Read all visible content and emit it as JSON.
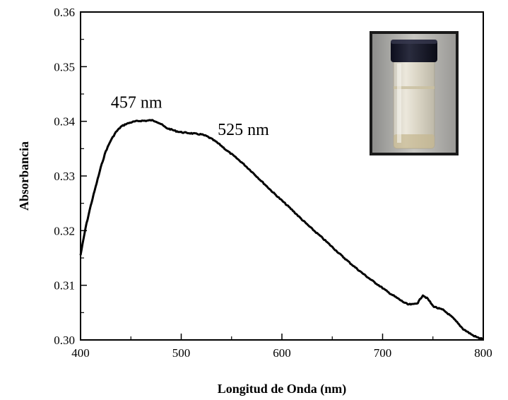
{
  "chart_data": {
    "type": "line",
    "xlabel": "Longitud de Onda (nm)",
    "ylabel": "Absorbancia",
    "xlim": [
      400,
      800
    ],
    "ylim": [
      0.3,
      0.36
    ],
    "x_ticks": [
      "400",
      "500",
      "600",
      "700",
      "800"
    ],
    "y_ticks": [
      "0.30",
      "0.31",
      "0.32",
      "0.33",
      "0.34",
      "0.35",
      "0.36"
    ],
    "grid": false,
    "legend": "none",
    "annotations": [
      {
        "text": "457 nm",
        "x": 457,
        "y": 0.3425
      },
      {
        "text": "525 nm",
        "x": 525,
        "y": 0.3375
      }
    ],
    "inset": "photo-of-vial",
    "series": [
      {
        "color": "#000000",
        "x": [
          400,
          405,
          410,
          415,
          420,
          425,
          430,
          435,
          440,
          445,
          450,
          455,
          460,
          465,
          470,
          475,
          480,
          485,
          490,
          495,
          500,
          505,
          510,
          515,
          520,
          525,
          530,
          535,
          540,
          545,
          550,
          560,
          570,
          580,
          590,
          600,
          610,
          620,
          630,
          640,
          650,
          660,
          670,
          680,
          690,
          700,
          705,
          710,
          715,
          720,
          725,
          730,
          735,
          740,
          745,
          750,
          755,
          760,
          765,
          770,
          775,
          780,
          785,
          790,
          795,
          800
        ],
        "y": [
          0.3155,
          0.3205,
          0.3245,
          0.328,
          0.3315,
          0.3345,
          0.3365,
          0.338,
          0.339,
          0.3395,
          0.3398,
          0.34,
          0.3401,
          0.3401,
          0.3402,
          0.34,
          0.3395,
          0.3388,
          0.3385,
          0.3382,
          0.338,
          0.3379,
          0.3378,
          0.3377,
          0.3376,
          0.3373,
          0.3368,
          0.3362,
          0.3355,
          0.3347,
          0.334,
          0.3325,
          0.3308,
          0.329,
          0.3272,
          0.3255,
          0.3238,
          0.322,
          0.3203,
          0.3187,
          0.317,
          0.3153,
          0.3137,
          0.3122,
          0.3108,
          0.3095,
          0.3088,
          0.3082,
          0.3076,
          0.307,
          0.3065,
          0.3065,
          0.3068,
          0.3082,
          0.3075,
          0.3062,
          0.3058,
          0.3055,
          0.3048,
          0.304,
          0.303,
          0.302,
          0.3014,
          0.3008,
          0.3004,
          0.3002
        ]
      }
    ]
  }
}
